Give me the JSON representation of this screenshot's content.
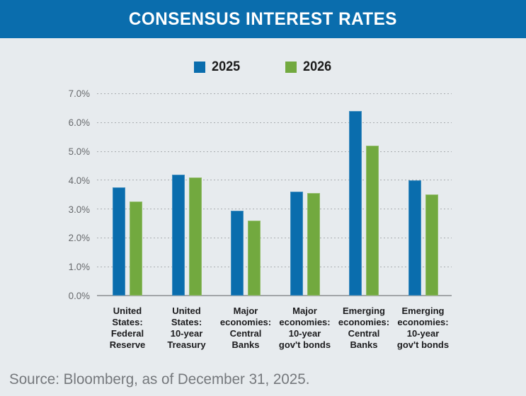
{
  "header": {
    "title": "CONSENSUS INTEREST RATES"
  },
  "legend": [
    {
      "label": "2025",
      "color": "#0a6dad"
    },
    {
      "label": "2026",
      "color": "#72a93f"
    }
  ],
  "source": "Source: Bloomberg, as of December 31, 2025.",
  "chart_data": {
    "type": "bar",
    "title": "CONSENSUS INTEREST RATES",
    "categories": [
      [
        "United",
        "States:",
        "Federal",
        "Reserve"
      ],
      [
        "United",
        "States:",
        "10-year",
        "Treasury"
      ],
      [
        "Major",
        "economies:",
        "Central",
        "Banks"
      ],
      [
        "Major",
        "economies:",
        "10-year",
        "gov't bonds"
      ],
      [
        "Emerging",
        "economies:",
        "Central",
        "Banks"
      ],
      [
        "Emerging",
        "economies:",
        "10-year",
        "gov't bonds"
      ]
    ],
    "series": [
      {
        "name": "2025",
        "color": "#0a6dad",
        "values": [
          3.75,
          4.2,
          2.95,
          3.6,
          6.4,
          4.0
        ]
      },
      {
        "name": "2026",
        "color": "#72a93f",
        "values": [
          3.25,
          4.1,
          2.6,
          3.55,
          5.2,
          3.5
        ]
      }
    ],
    "y_axis": {
      "min": 0,
      "max": 7,
      "step": 1,
      "tick_suffix": "%",
      "tick_decimals": 1
    },
    "grid": "horizontal-dotted",
    "legend_position": "top-center"
  },
  "colors": {
    "banner": "#0a6dad",
    "background": "#e7ebee",
    "grid": "#a9adb0",
    "axis": "#a2a5a8",
    "tick_text": "#67696c",
    "category_text": "#1b1b1d",
    "source_text": "#75787c"
  }
}
